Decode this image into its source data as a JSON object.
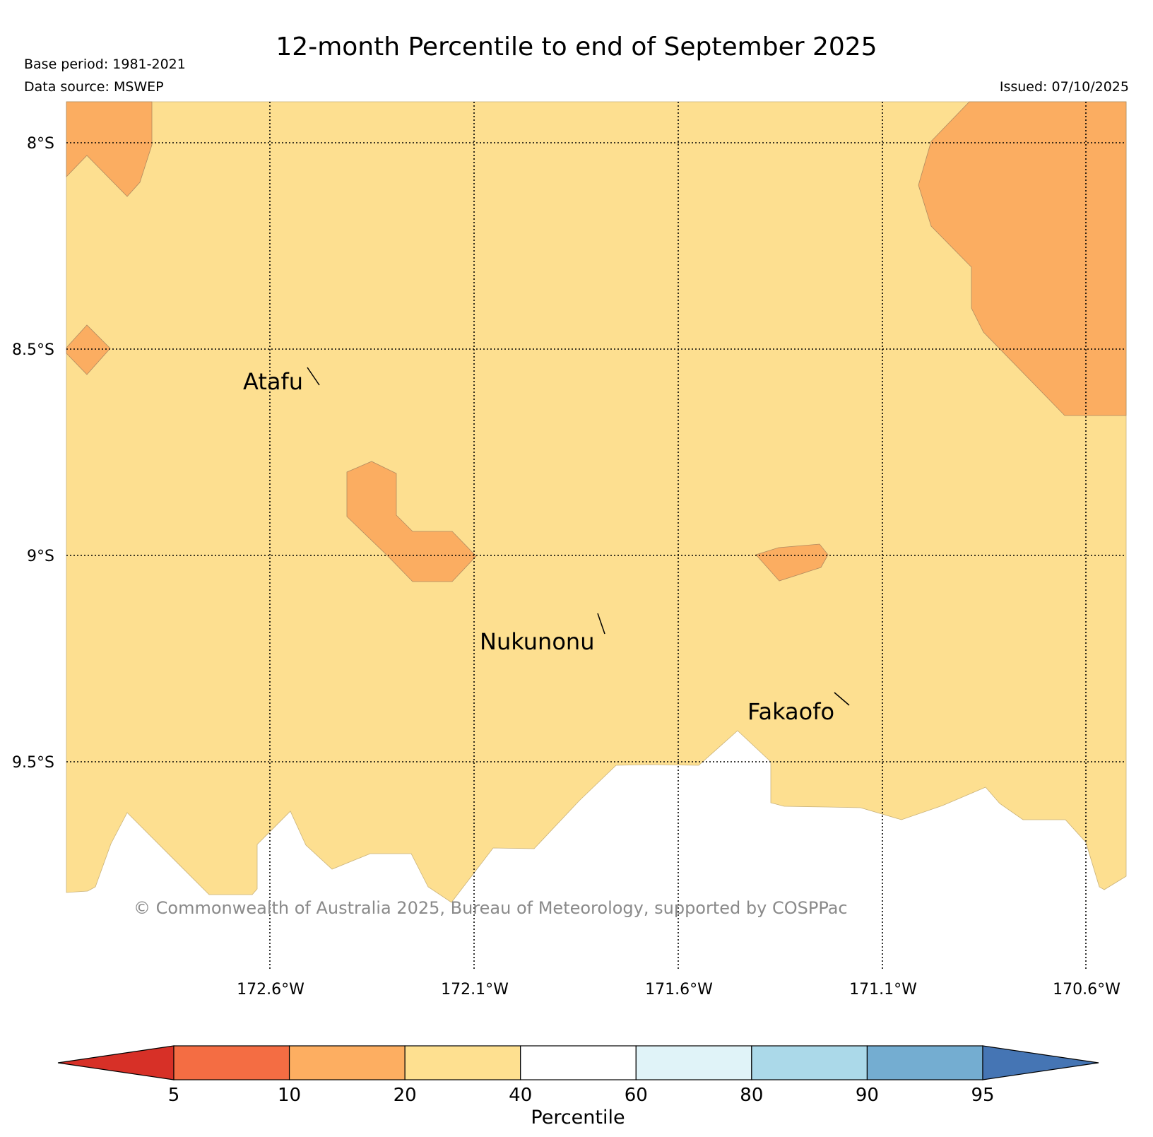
{
  "title": "12-month Percentile to end of September 2025",
  "base_period": "Base period: 1981-2021",
  "data_source": "Data source: MSWEP",
  "issued": "Issued: 07/10/2025",
  "copyright": "© Commonwealth of Australia 2025, Bureau of Meteorology, supported by COSPPac",
  "lat_labels": [
    "8°S",
    "8.5°S",
    "9°S",
    "9.5°S"
  ],
  "lon_labels": [
    "172.6°W",
    "172.1°W",
    "171.6°W",
    "171.1°W",
    "170.6°W"
  ],
  "places": [
    {
      "name": "Atafu"
    },
    {
      "name": "Nukunonu"
    },
    {
      "name": "Fakaofo"
    }
  ],
  "colors": {
    "band_20_40": "#fddf90",
    "band_10_20": "#fbad61",
    "outline": "#b08a60"
  },
  "colorbar": {
    "label": "Percentile",
    "ticks": [
      "5",
      "10",
      "20",
      "40",
      "60",
      "80",
      "90",
      "95"
    ],
    "under_color": "#d73027",
    "over_color": "#4575b4",
    "segments": [
      {
        "from": 5,
        "to": 10,
        "color": "#f46d43"
      },
      {
        "from": 10,
        "to": 20,
        "color": "#fdae61"
      },
      {
        "from": 20,
        "to": 40,
        "color": "#fee090"
      },
      {
        "from": 40,
        "to": 60,
        "color": "#ffffff"
      },
      {
        "from": 60,
        "to": 80,
        "color": "#e0f3f8"
      },
      {
        "from": 80,
        "to": 90,
        "color": "#abd9e9"
      },
      {
        "from": 90,
        "to": 95,
        "color": "#74add1"
      }
    ]
  }
}
